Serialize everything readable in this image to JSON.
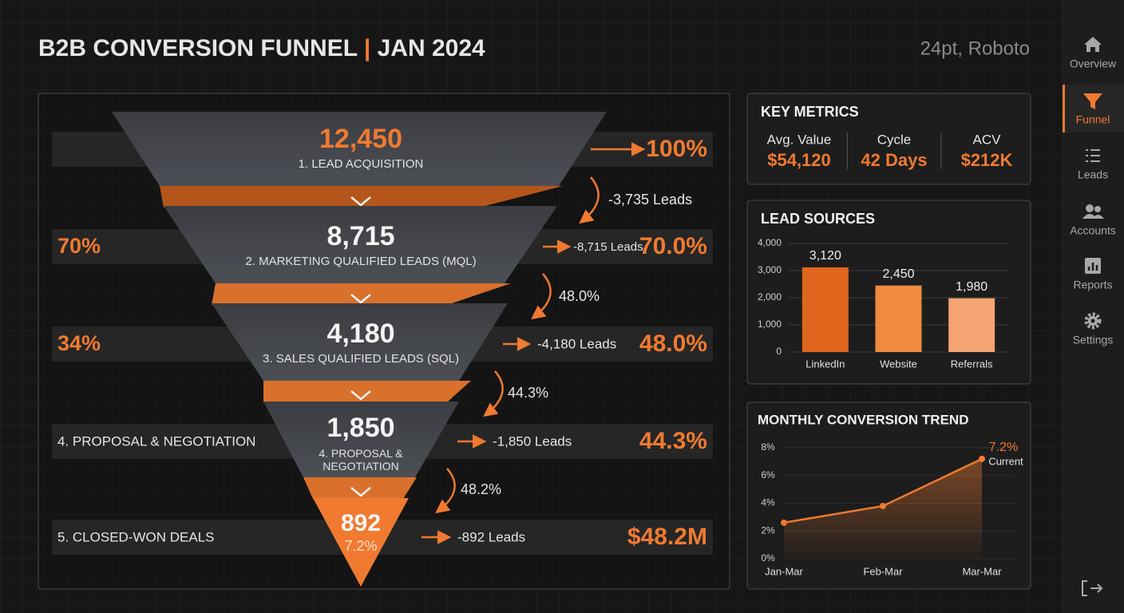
{
  "header": {
    "title_main": "B2B CONVERSION FUNNEL",
    "separator": "|",
    "title_date": "JAN 2024",
    "note": "24pt, Roboto"
  },
  "sidebar": {
    "items": [
      {
        "label": "Overview"
      },
      {
        "label": "Funnel",
        "active": true
      },
      {
        "label": "Leads"
      },
      {
        "label": "Accounts"
      },
      {
        "label": "Reports"
      },
      {
        "label": "Settings"
      }
    ]
  },
  "funnel": {
    "stages": [
      {
        "count": "12,450",
        "name": "1. LEAD ACQUISITION",
        "right": "100%"
      },
      {
        "count": "8,715",
        "name": "2. MARKETING QUALIFIED LEADS (MQL)",
        "left": "70%",
        "leads": "-8,715 Leads",
        "right": "70.0%"
      },
      {
        "count": "4,180",
        "name": "3. SALES QUALIFIED LEADS (SQL)",
        "left": "34%",
        "leads": "-4,180 Leads",
        "right": "48.0%"
      },
      {
        "count": "1,850",
        "name": "4. PROPOSAL & NEGOTIATION",
        "left": "4. PROPOSAL & NEGOTIATION",
        "leads": "-1,850 Leads",
        "right": "44.3%"
      },
      {
        "count": "892",
        "rate": "7.2%",
        "left": "5. CLOSED-WON DEALS",
        "leads": "-892 Leads",
        "right": "$48.2M"
      }
    ],
    "transitions": [
      "-3,735 Leads",
      "48.0%",
      "44.3%",
      "48.2%"
    ]
  },
  "key_metrics": {
    "title": "KEY METRICS",
    "items": [
      {
        "label": "Avg. Value",
        "value": "$54,120"
      },
      {
        "label": "Cycle",
        "value": "42 Days"
      },
      {
        "label": "ACV",
        "value": "$212K"
      }
    ]
  },
  "lead_sources": {
    "title": "LEAD SOURCES",
    "type": "bar",
    "categories": [
      "LinkedIn",
      "Website",
      "Referrals"
    ],
    "values": [
      3120,
      2450,
      1980
    ],
    "value_labels": [
      "3,120",
      "2,450",
      "1,980"
    ],
    "colors": [
      "#e0661d",
      "#f08a40",
      "#f4a373"
    ],
    "ylim": [
      0,
      4000
    ],
    "yticks": [
      0,
      {
        "value": 1000,
        "label": "1,000"
      },
      {
        "value": 2000,
        "label": "2,000"
      },
      {
        "value": 3000,
        "label": "3,000"
      },
      {
        "value": 4000,
        "label": "4,000"
      }
    ],
    "grid": true
  },
  "conversion_trend": {
    "title": "MONTHLY CONVERSION TREND",
    "type": "line",
    "categories": [
      "Jan-Mar",
      "Feb-Mar",
      "Mar-Mar"
    ],
    "values": [
      2.6,
      3.8,
      7.2
    ],
    "value_labels": [
      null,
      null,
      "7.2%"
    ],
    "annotation": "Current",
    "color": "#f07a30",
    "ylim": [
      0,
      8
    ],
    "yticks": [
      {
        "value": 0,
        "label": "0%"
      },
      {
        "value": 2,
        "label": "2%"
      },
      {
        "value": 4,
        "label": "4%"
      },
      {
        "value": 6,
        "label": "6%"
      },
      {
        "value": 8,
        "label": "8%"
      }
    ],
    "grid": true
  }
}
